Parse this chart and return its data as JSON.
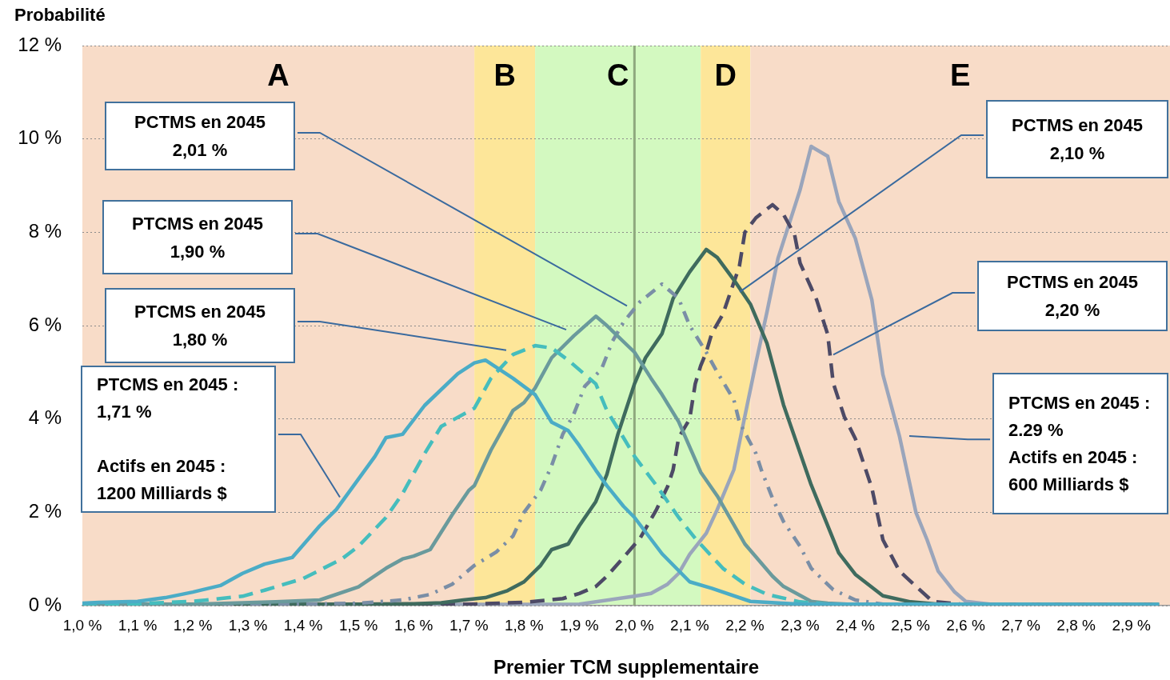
{
  "chart_data": {
    "type": "line",
    "ylabel": "Probabilité",
    "xlabel": "Premier TCM supplementaire",
    "xlim": [
      1.0,
      2.97
    ],
    "ylim": [
      0,
      12
    ],
    "xticks": [
      {
        "value": 1.0,
        "label": "1,0 %"
      },
      {
        "value": 1.1,
        "label": "1,1 %"
      },
      {
        "value": 1.2,
        "label": "1,2 %"
      },
      {
        "value": 1.3,
        "label": "1,3 %"
      },
      {
        "value": 1.4,
        "label": "1,4 %"
      },
      {
        "value": 1.5,
        "label": "1,5 %"
      },
      {
        "value": 1.6,
        "label": "1,6 %"
      },
      {
        "value": 1.7,
        "label": "1,7 %"
      },
      {
        "value": 1.8,
        "label": "1,8 %"
      },
      {
        "value": 1.9,
        "label": "1,9 %"
      },
      {
        "value": 2.0,
        "label": "2,0 %"
      },
      {
        "value": 2.1,
        "label": "2,1 %"
      },
      {
        "value": 2.2,
        "label": "2,2 %"
      },
      {
        "value": 2.3,
        "label": "2,3 %"
      },
      {
        "value": 2.4,
        "label": "2,4 %"
      },
      {
        "value": 2.5,
        "label": "2,5 %"
      },
      {
        "value": 2.6,
        "label": "2,6 %"
      },
      {
        "value": 2.7,
        "label": "2,7 %"
      },
      {
        "value": 2.8,
        "label": "2,8 %"
      },
      {
        "value": 2.9,
        "label": "2,9 %"
      }
    ],
    "yticks": [
      {
        "value": 0,
        "label": "0 %"
      },
      {
        "value": 2,
        "label": "2 %"
      },
      {
        "value": 4,
        "label": "4 %"
      },
      {
        "value": 6,
        "label": "6 %"
      },
      {
        "value": 8,
        "label": "8 %"
      },
      {
        "value": 10,
        "label": "10 %"
      },
      {
        "value": 12,
        "label": "12 %"
      }
    ],
    "grid": "y",
    "legend": false,
    "marker": "none",
    "bands": [
      {
        "axis": "x",
        "from": 1.0,
        "to": 1.71,
        "label": "A",
        "color": "#f8dcc8"
      },
      {
        "axis": "x",
        "from": 1.71,
        "to": 1.82,
        "label": "B",
        "color": "#fde699"
      },
      {
        "axis": "x",
        "from": 1.82,
        "to": 2.12,
        "label": "C",
        "color": "#d3f9c0"
      },
      {
        "axis": "x",
        "from": 2.12,
        "to": 2.21,
        "label": "D",
        "color": "#fde699"
      },
      {
        "axis": "x",
        "from": 2.21,
        "to": 2.97,
        "label": "E",
        "color": "#f8dcc8"
      }
    ],
    "ref_lines": [
      {
        "axis": "x",
        "value": 2.0,
        "color": "#8fa87e"
      }
    ],
    "annotations": [
      "PCTMS en 2045\n2,01 %",
      "PTCMS en 2045\n1,90 %",
      "PTCMS en 2045\n1,80 %",
      "PTCMS en 2045 :\n1,71 %\n\nActifs en 2045 :\n1200 Milliards $",
      "PCTMS en 2045\n2,10 %",
      "PCTMS en 2045\n2,20 %",
      "PTCMS en 2045 :\n2.29 %\nActifs en 2045 :\n600 Milliards $"
    ],
    "series": [
      {
        "color": "#4bacc6",
        "line_style": "solid",
        "x": [
          1.0,
          1.03,
          1.1,
          1.15,
          1.2,
          1.25,
          1.29,
          1.33,
          1.38,
          1.43,
          1.46,
          1.53,
          1.55,
          1.58,
          1.62,
          1.68,
          1.71,
          1.73,
          1.78,
          1.82,
          1.85,
          1.88,
          1.9,
          1.93,
          1.95,
          1.98,
          2.0,
          2.05,
          2.1,
          2.14,
          2.21,
          2.3,
          2.95
        ],
        "values": [
          0.05,
          0.07,
          0.09,
          0.17,
          0.29,
          0.43,
          0.69,
          0.89,
          1.03,
          1.71,
          2.06,
          3.2,
          3.6,
          3.67,
          4.29,
          4.97,
          5.2,
          5.26,
          4.87,
          4.52,
          3.93,
          3.75,
          3.43,
          2.9,
          2.57,
          2.13,
          1.89,
          1.11,
          0.51,
          0.37,
          0.09,
          0.03,
          0.02
        ]
      },
      {
        "color": "#45bdbd",
        "line_style": "dashed",
        "x": [
          1.0,
          1.1,
          1.2,
          1.29,
          1.33,
          1.4,
          1.47,
          1.5,
          1.55,
          1.58,
          1.62,
          1.65,
          1.71,
          1.74,
          1.78,
          1.82,
          1.85,
          1.88,
          1.93,
          1.95,
          1.98,
          2.0,
          2.04,
          2.08,
          2.11,
          2.16,
          2.2,
          2.24,
          2.3,
          2.35,
          2.95
        ],
        "values": [
          0.02,
          0.04,
          0.09,
          0.2,
          0.33,
          0.58,
          1.0,
          1.27,
          1.89,
          2.4,
          3.26,
          3.84,
          4.23,
          4.87,
          5.38,
          5.57,
          5.52,
          5.26,
          4.75,
          4.18,
          3.6,
          3.2,
          2.57,
          1.89,
          1.44,
          0.8,
          0.46,
          0.24,
          0.08,
          0.03,
          0.02
        ]
      },
      {
        "color": "#6a9a9c",
        "line_style": "solid",
        "x": [
          1.0,
          1.2,
          1.35,
          1.43,
          1.5,
          1.55,
          1.58,
          1.6,
          1.63,
          1.67,
          1.7,
          1.71,
          1.74,
          1.78,
          1.8,
          1.82,
          1.85,
          1.89,
          1.93,
          1.95,
          2.0,
          2.03,
          2.05,
          2.08,
          2.12,
          2.15,
          2.2,
          2.25,
          2.27,
          2.32,
          2.35,
          2.4,
          2.95
        ],
        "values": [
          0.02,
          0.03,
          0.08,
          0.12,
          0.4,
          0.8,
          1.0,
          1.06,
          1.2,
          1.95,
          2.47,
          2.57,
          3.33,
          4.18,
          4.35,
          4.66,
          5.31,
          5.78,
          6.2,
          6.0,
          5.43,
          4.87,
          4.52,
          3.94,
          2.86,
          2.35,
          1.32,
          0.63,
          0.41,
          0.09,
          0.05,
          0.02,
          0.02
        ]
      },
      {
        "color": "#7a8ea6",
        "line_style": "dotted",
        "x": [
          1.0,
          1.4,
          1.5,
          1.58,
          1.63,
          1.67,
          1.71,
          1.75,
          1.78,
          1.8,
          1.83,
          1.85,
          1.87,
          1.89,
          1.91,
          1.94,
          1.96,
          1.98,
          2.01,
          2.05,
          2.08,
          2.1,
          2.13,
          2.15,
          2.18,
          2.19,
          2.22,
          2.23,
          2.25,
          2.27,
          2.3,
          2.32,
          2.36,
          2.4,
          2.45,
          2.95
        ],
        "values": [
          0.02,
          0.03,
          0.05,
          0.12,
          0.24,
          0.46,
          0.86,
          1.15,
          1.49,
          2.0,
          2.47,
          3.0,
          3.67,
          4.1,
          4.7,
          5.06,
          5.66,
          6.07,
          6.51,
          6.89,
          6.58,
          6.0,
          5.43,
          5.0,
          4.41,
          3.93,
          3.26,
          2.9,
          2.3,
          1.8,
          1.27,
          0.8,
          0.34,
          0.12,
          0.03,
          0.02
        ]
      },
      {
        "color": "#3f6b5e",
        "line_style": "solid",
        "x": [
          1.0,
          1.5,
          1.6,
          1.65,
          1.69,
          1.73,
          1.77,
          1.8,
          1.83,
          1.85,
          1.88,
          1.9,
          1.93,
          1.95,
          1.97,
          2.0,
          2.02,
          2.05,
          2.07,
          2.1,
          2.13,
          2.15,
          2.18,
          2.21,
          2.23,
          2.24,
          2.27,
          2.32,
          2.37,
          2.4,
          2.45,
          2.5,
          2.55,
          2.95
        ],
        "values": [
          0.02,
          0.03,
          0.04,
          0.06,
          0.12,
          0.17,
          0.32,
          0.51,
          0.86,
          1.2,
          1.32,
          1.71,
          2.23,
          2.81,
          3.67,
          4.75,
          5.31,
          5.83,
          6.58,
          7.15,
          7.63,
          7.46,
          6.98,
          6.46,
          5.9,
          5.62,
          4.3,
          2.59,
          1.13,
          0.67,
          0.21,
          0.08,
          0.03,
          0.02
        ]
      },
      {
        "color": "#4d4a66",
        "line_style": "dashed",
        "x": [
          1.0,
          1.7,
          1.8,
          1.87,
          1.9,
          1.93,
          1.95,
          1.98,
          2.01,
          2.04,
          2.06,
          2.07,
          2.08,
          2.1,
          2.11,
          2.12,
          2.13,
          2.14,
          2.16,
          2.19,
          2.2,
          2.22,
          2.25,
          2.27,
          2.29,
          2.3,
          2.33,
          2.35,
          2.36,
          2.38,
          2.4,
          2.43,
          2.45,
          2.48,
          2.51,
          2.54,
          2.6,
          2.95
        ],
        "values": [
          0.02,
          0.03,
          0.07,
          0.15,
          0.26,
          0.41,
          0.63,
          1.03,
          1.44,
          2.06,
          2.55,
          2.91,
          3.6,
          4.0,
          4.75,
          5.14,
          5.43,
          5.83,
          6.24,
          7.27,
          8.0,
          8.31,
          8.59,
          8.38,
          7.95,
          7.34,
          6.55,
          5.81,
          4.77,
          4.05,
          3.58,
          2.52,
          1.41,
          0.74,
          0.41,
          0.09,
          0.02,
          0.02
        ]
      },
      {
        "color": "#9aa5bb",
        "line_style": "solid",
        "x": [
          1.0,
          1.9,
          2.0,
          2.03,
          2.06,
          2.08,
          2.1,
          2.13,
          2.15,
          2.18,
          2.2,
          2.22,
          2.24,
          2.26,
          2.3,
          2.32,
          2.35,
          2.37,
          2.4,
          2.43,
          2.45,
          2.48,
          2.51,
          2.53,
          2.55,
          2.58,
          2.6,
          2.65,
          2.95
        ],
        "values": [
          0.02,
          0.03,
          0.2,
          0.26,
          0.46,
          0.69,
          1.1,
          1.55,
          2.06,
          2.91,
          4.06,
          5.2,
          6.29,
          7.44,
          8.91,
          9.84,
          9.63,
          8.66,
          7.87,
          6.55,
          4.95,
          3.63,
          1.99,
          1.41,
          0.74,
          0.29,
          0.09,
          0.02,
          0.02
        ]
      }
    ]
  }
}
